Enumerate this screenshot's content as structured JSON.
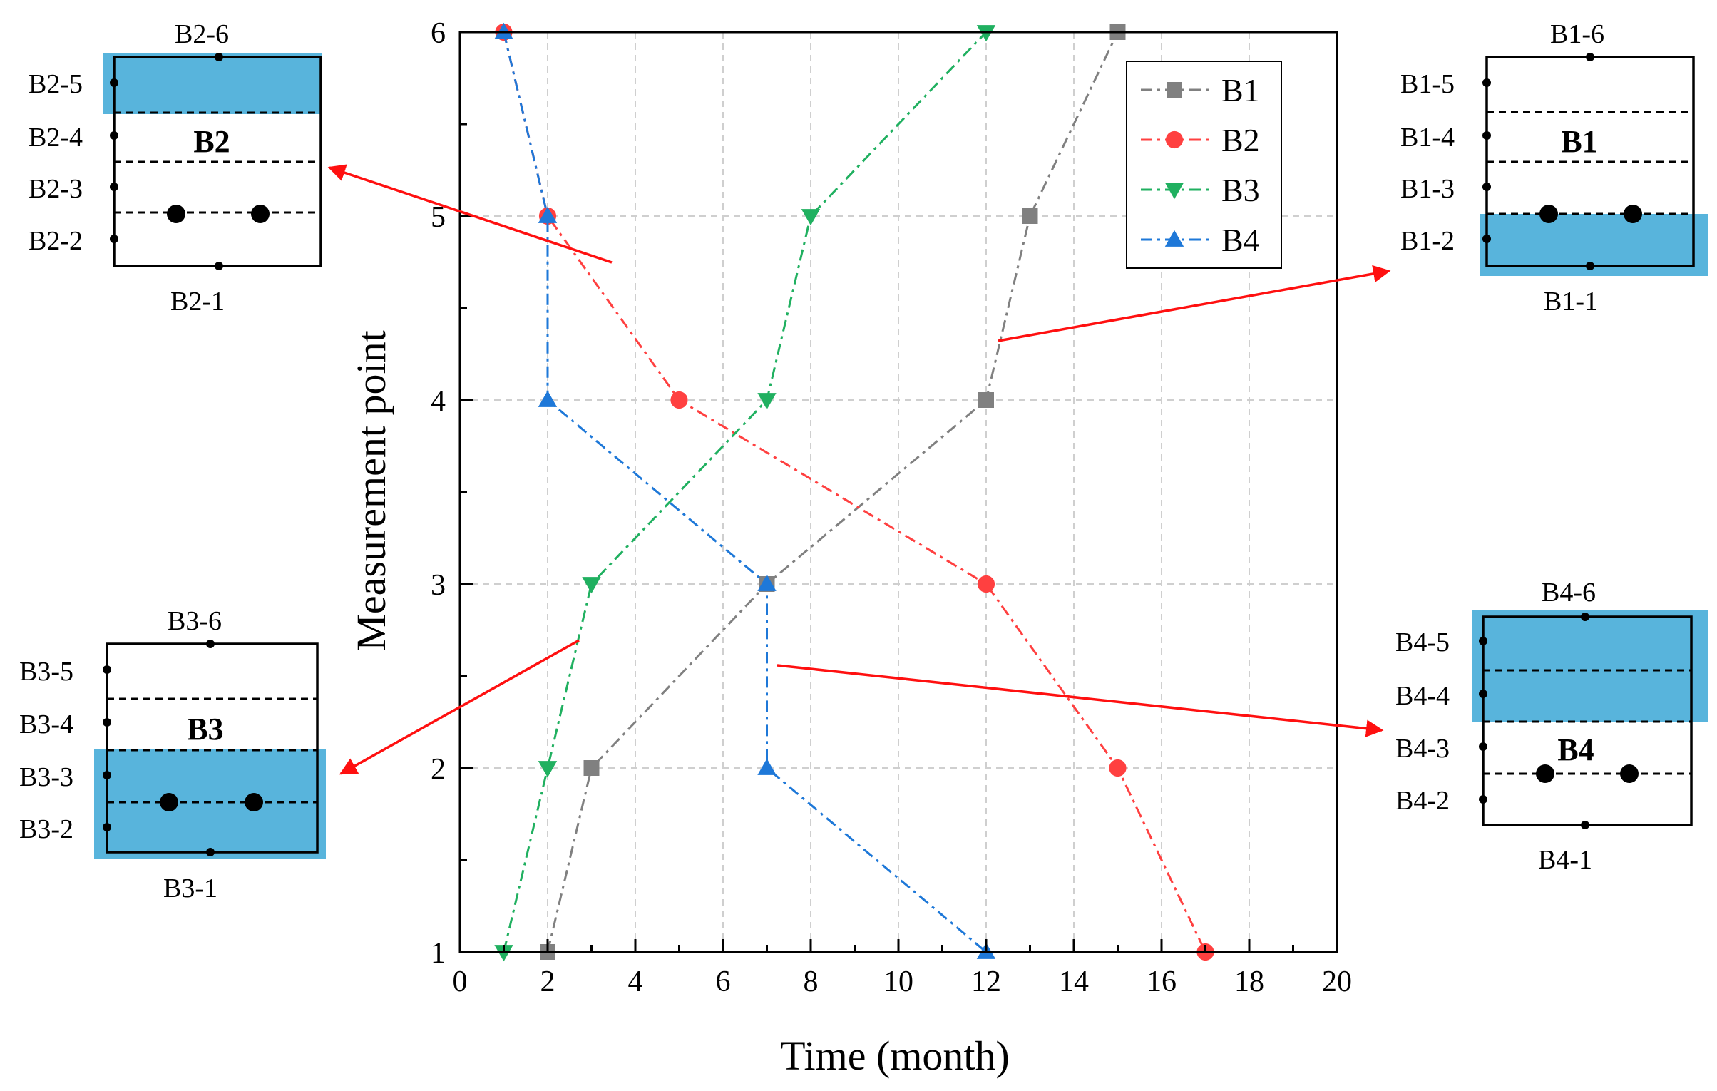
{
  "chart_data": {
    "type": "line",
    "xlabel": "Time (month)",
    "ylabel": "Measurement point",
    "xlim": [
      0,
      20
    ],
    "ylim": [
      1,
      6
    ],
    "x_ticks": [
      0,
      2,
      4,
      6,
      8,
      10,
      12,
      14,
      16,
      18,
      20
    ],
    "y_ticks": [
      1,
      2,
      3,
      4,
      5,
      6
    ],
    "grid": true,
    "legend_position": "top-right",
    "series": [
      {
        "name": "B1",
        "color": "#808080",
        "marker": "square",
        "points": [
          [
            2,
            1
          ],
          [
            3,
            2
          ],
          [
            7,
            3
          ],
          [
            12,
            4
          ],
          [
            13,
            5
          ],
          [
            15,
            6
          ]
        ]
      },
      {
        "name": "B2",
        "color": "#ff4040",
        "marker": "circle",
        "points": [
          [
            1,
            6
          ],
          [
            2,
            5
          ],
          [
            5,
            4
          ],
          [
            12,
            3
          ],
          [
            15,
            2
          ],
          [
            17,
            1
          ]
        ]
      },
      {
        "name": "B3",
        "color": "#20b060",
        "marker": "triangle-down",
        "points": [
          [
            1,
            1
          ],
          [
            2,
            2
          ],
          [
            3,
            3
          ],
          [
            7,
            4
          ],
          [
            8,
            5
          ],
          [
            12,
            6
          ]
        ]
      },
      {
        "name": "B4",
        "color": "#1e78d8",
        "marker": "triangle-up",
        "points": [
          [
            1,
            6
          ],
          [
            2,
            5
          ],
          [
            2,
            4
          ],
          [
            7,
            3
          ],
          [
            7,
            2
          ],
          [
            12,
            1
          ]
        ]
      }
    ]
  },
  "diagrams": [
    {
      "title": "B1",
      "labels": [
        "B1-1",
        "B1-2",
        "B1-3",
        "B1-4",
        "B1-5",
        "B1-6"
      ],
      "highlight": "B1-2",
      "highlight_color": "#58b4dc"
    },
    {
      "title": "B2",
      "labels": [
        "B2-1",
        "B2-2",
        "B2-3",
        "B2-4",
        "B2-5",
        "B2-6"
      ],
      "highlight": "B2-5",
      "highlight_color": "#58b4dc"
    },
    {
      "title": "B3",
      "labels": [
        "B3-1",
        "B3-2",
        "B3-3",
        "B3-4",
        "B3-5",
        "B3-6"
      ],
      "highlight": "B3-2, B3-3",
      "highlight_color": "#58b4dc"
    },
    {
      "title": "B4",
      "labels": [
        "B4-1",
        "B4-2",
        "B4-3",
        "B4-4",
        "B4-5",
        "B4-6"
      ],
      "highlight": "B4-4, B4-5",
      "highlight_color": "#58b4dc"
    }
  ],
  "arrow_color": "#ff1010"
}
